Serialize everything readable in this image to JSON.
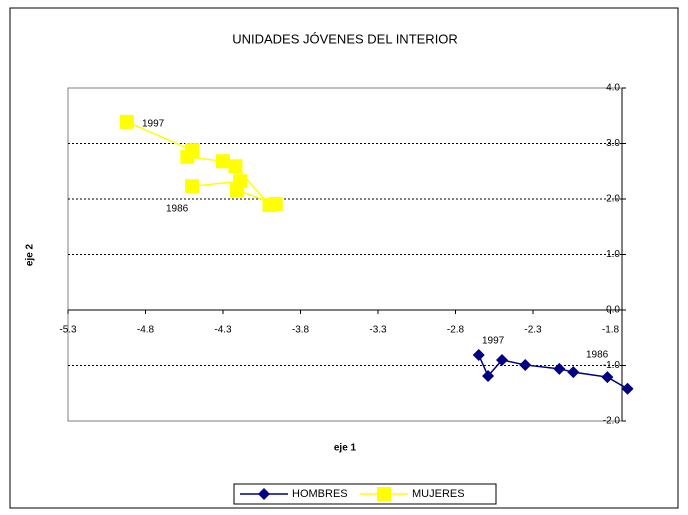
{
  "chart_data": {
    "type": "scatter",
    "title": "UNIDADES JÓVENES DEL INTERIOR",
    "xlabel": "eje 1",
    "ylabel": "eje 2",
    "xlim": [
      -5.3,
      -1.7
    ],
    "ylim": [
      -2,
      4
    ],
    "xticks": [
      -5.3,
      -4.8,
      -4.3,
      -3.8,
      -3.3,
      -2.8,
      -2.3,
      -1.8
    ],
    "yticks": [
      {
        "value": -2,
        "label": "-2.0"
      },
      {
        "value": -1,
        "label": "-1.0"
      },
      {
        "value": 0,
        "label": "0.0"
      },
      {
        "value": 1,
        "label": "1.0"
      },
      {
        "value": 2,
        "label": "2.0"
      },
      {
        "value": 3,
        "label": "3.0"
      },
      {
        "value": 4,
        "label": "4.0"
      }
    ],
    "grid": true,
    "legend": "bottom",
    "annotations": [
      "1997",
      "1986",
      "1997",
      "1986"
    ],
    "series": [
      {
        "name": "HOMBRES",
        "color": "#000080",
        "marker": "diamond",
        "x": [
          -2.65,
          -2.59,
          -2.5,
          -2.35,
          -2.13,
          -2.04,
          -1.82,
          -1.69
        ],
        "values": [
          -0.81,
          -1.19,
          -0.9,
          -0.99,
          -1.06,
          -1.12,
          -1.21,
          -1.42
        ]
      },
      {
        "name": "MUJERES",
        "color": "#ffff00",
        "marker": "square",
        "x": [
          -4.5,
          -4.19,
          -4.21,
          -3.96,
          -4.0,
          -4.22,
          -4.3,
          -4.53,
          -4.5,
          -4.92
        ],
        "values": [
          2.23,
          2.32,
          2.16,
          1.91,
          1.89,
          2.59,
          2.68,
          2.76,
          2.88,
          3.39
        ]
      }
    ]
  }
}
